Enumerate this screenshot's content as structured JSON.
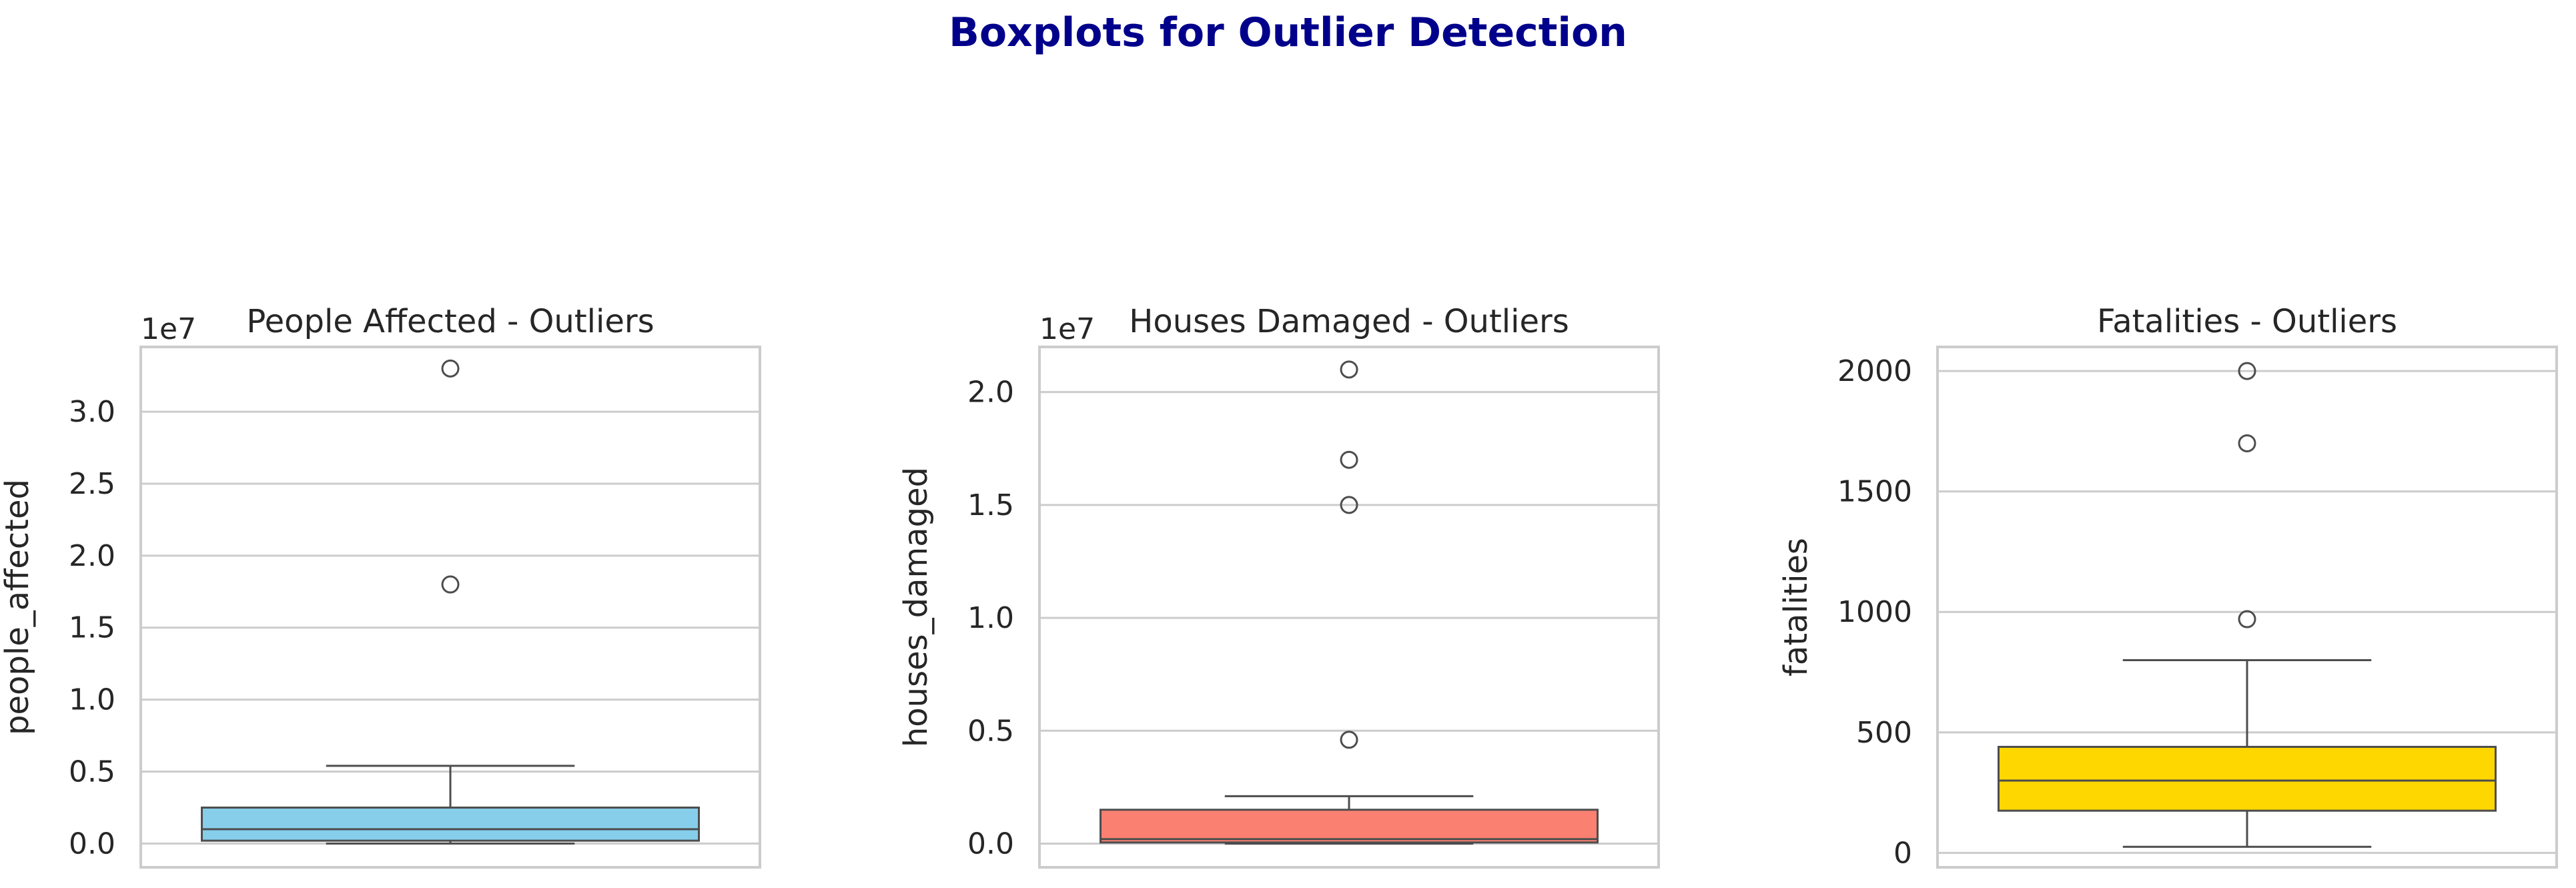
{
  "figure": {
    "suptitle": "Boxplots for Outlier Detection",
    "suptitle_color": "#00008b"
  },
  "chart_data": [
    {
      "type": "box",
      "title": "People Affected - Outliers",
      "ylabel": "people_affected",
      "xlabel": "",
      "offset_text": "1e7",
      "scale": 10000000,
      "ylim": [
        -0.165,
        3.45
      ],
      "yticks": [
        0.0,
        0.5,
        1.0,
        1.5,
        2.0,
        2.5,
        3.0
      ],
      "ytick_labels": [
        "0.0",
        "0.5",
        "1.0",
        "1.5",
        "2.0",
        "2.5",
        "3.0"
      ],
      "box": {
        "min": 0.0,
        "q1": 0.02,
        "median": 0.1,
        "q3": 0.25,
        "whisker_high": 0.54
      },
      "outliers": [
        1.8,
        3.3
      ],
      "color": "#87ceeb",
      "grid": true
    },
    {
      "type": "box",
      "title": "Houses Damaged - Outliers",
      "ylabel": "houses_damaged",
      "xlabel": "",
      "offset_text": "1e7",
      "scale": 10000000,
      "ylim": [
        -0.105,
        2.2
      ],
      "yticks": [
        0.0,
        0.5,
        1.0,
        1.5,
        2.0
      ],
      "ytick_labels": [
        "0.0",
        "0.5",
        "1.0",
        "1.5",
        "2.0"
      ],
      "box": {
        "min": 0.0,
        "q1": 0.005,
        "median": 0.02,
        "q3": 0.15,
        "whisker_high": 0.21
      },
      "outliers": [
        0.46,
        1.5,
        1.7,
        2.1
      ],
      "color": "#fa8072",
      "grid": true
    },
    {
      "type": "box",
      "title": "Fatalities - Outliers",
      "ylabel": "fatalities",
      "xlabel": "",
      "offset_text": "",
      "scale": 1,
      "ylim": [
        -60,
        2100
      ],
      "yticks": [
        0,
        500,
        1000,
        1500,
        2000
      ],
      "ytick_labels": [
        "0",
        "500",
        "1000",
        "1500",
        "2000"
      ],
      "box": {
        "min": 25,
        "q1": 175,
        "median": 300,
        "q3": 440,
        "whisker_high": 800
      },
      "outliers": [
        970,
        1700,
        2000
      ],
      "color": "#ffd700",
      "grid": true
    }
  ]
}
